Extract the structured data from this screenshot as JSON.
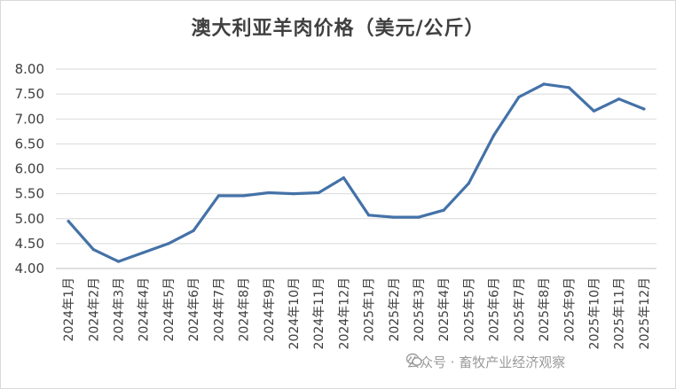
{
  "chart_data": {
    "type": "line",
    "title": "澳大利亚羊肉价格（美元/公斤）",
    "categories": [
      "2024年1月",
      "2024年2月",
      "2024年3月",
      "2024年4月",
      "2024年5月",
      "2024年6月",
      "2024年7月",
      "2024年8月",
      "2024年9月",
      "2024年10月",
      "2024年11月",
      "2024年12月",
      "2025年1月",
      "2025年2月",
      "2025年3月",
      "2025年4月",
      "2025年5月",
      "2025年6月",
      "2025年7月",
      "2025年8月",
      "2025年9月",
      "2025年10月",
      "2025年11月",
      "2025年12月"
    ],
    "series": [
      {
        "values": [
          4.95,
          4.38,
          4.14,
          4.32,
          4.5,
          4.76,
          5.46,
          5.46,
          5.52,
          5.5,
          5.52,
          5.82,
          5.07,
          5.03,
          5.03,
          5.17,
          5.71,
          6.67,
          7.44,
          7.7,
          7.63,
          7.16,
          7.4,
          7.2
        ],
        "color": "#4472a8"
      }
    ],
    "yticks": [
      "4.00",
      "4.50",
      "5.00",
      "5.50",
      "6.00",
      "6.50",
      "7.00",
      "7.50",
      "8.00"
    ],
    "ylim": [
      4.0,
      8.0
    ],
    "grid": true,
    "xlabel": "",
    "ylabel": ""
  },
  "watermark": {
    "text": "公众号 · 畜牧产业经济观察",
    "icon": "wechat-icon"
  }
}
